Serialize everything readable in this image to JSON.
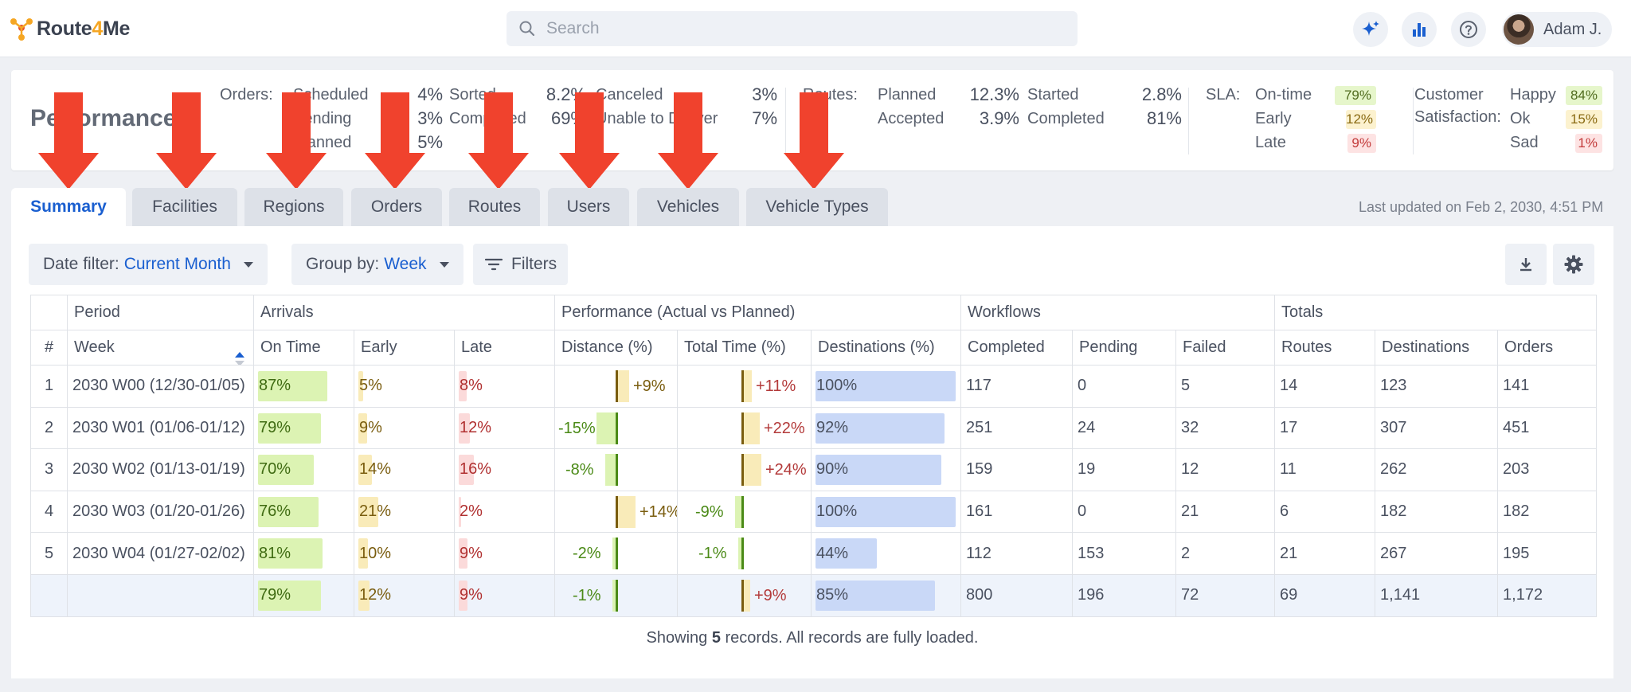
{
  "app": {
    "logo_route": "Route",
    "logo_four": "4",
    "logo_me": "Me"
  },
  "search": {
    "placeholder": "Search"
  },
  "user": {
    "name": "Adam J."
  },
  "summary": {
    "title": "Performance",
    "orders_label": "Orders:",
    "scheduled_label": "Scheduled",
    "scheduled_val": "4%",
    "pending_label": "Pending",
    "pending_val": "3%",
    "planned_label": "Planned",
    "planned_val": "5%",
    "sorted_label": "Sorted",
    "sorted_val": "8.2%",
    "completed_label": "Completed",
    "completed_val": "69%",
    "canceled_label": "Canceled",
    "canceled_val": "3%",
    "unable_label": "Unable to Deliver",
    "unable_val": "7%",
    "routes_label": "Routes:",
    "r_planned_label": "Planned",
    "r_planned_val": "12.3%",
    "r_accepted_label": "Accepted",
    "r_accepted_val": "3.9%",
    "r_started_label": "Started",
    "r_started_val": "2.8%",
    "r_completed_label": "Completed",
    "r_completed_val": "81%",
    "sla_label": "SLA:",
    "ontime_label": "On-time",
    "ontime_val": "79%",
    "early_label": "Early",
    "early_val": "12%",
    "late_label": "Late",
    "late_val": "9%",
    "cust_label_1": "Customer",
    "cust_label_2": "Satisfaction:",
    "happy_label": "Happy",
    "happy_val": "84%",
    "ok_label": "Ok",
    "ok_val": "15%",
    "sad_label": "Sad",
    "sad_val": "1%"
  },
  "tabs": [
    {
      "label": "Summary"
    },
    {
      "label": "Facilities"
    },
    {
      "label": "Regions"
    },
    {
      "label": "Orders"
    },
    {
      "label": "Routes"
    },
    {
      "label": "Users"
    },
    {
      "label": "Vehicles"
    },
    {
      "label": "Vehicle Types"
    }
  ],
  "last_updated": "Last updated on Feb 2, 2030, 4:51 PM",
  "toolbar": {
    "date_filter_label": "Date filter:",
    "date_filter_value": "Current Month",
    "group_by_label": "Group by:",
    "group_by_value": "Week",
    "filters_label": "Filters"
  },
  "table": {
    "groups": {
      "period": "Period",
      "arrivals": "Arrivals",
      "performance": "Performance (Actual vs Planned)",
      "workflows": "Workflows",
      "totals": "Totals"
    },
    "columns": {
      "num": "#",
      "week": "Week",
      "on_time": "On Time",
      "early": "Early",
      "late": "Late",
      "distance": "Distance (%)",
      "total_time": "Total Time (%)",
      "destinations_pct": "Destinations (%)",
      "completed": "Completed",
      "pending": "Pending",
      "failed": "Failed",
      "routes": "Routes",
      "destinations": "Destinations",
      "orders": "Orders"
    },
    "rows": [
      {
        "num": "1",
        "week": "2030 W00 (12/30-01/05)",
        "on_time": "87%",
        "on_time_pct": 87,
        "early": "5%",
        "early_pct": 5,
        "late": "8%",
        "late_pct": 8,
        "distance": "+9%",
        "distance_dev": 9,
        "total_time": "+11%",
        "total_time_dev": 11,
        "dest_pct_label": "100%",
        "dest_pct": 100,
        "completed": "117",
        "pending": "0",
        "failed": "5",
        "routes": "14",
        "destinations": "123",
        "orders": "141"
      },
      {
        "num": "2",
        "week": "2030 W01 (01/06-01/12)",
        "on_time": "79%",
        "on_time_pct": 79,
        "early": "9%",
        "early_pct": 9,
        "late": "12%",
        "late_pct": 12,
        "distance": "-15%",
        "distance_dev": -15,
        "total_time": "+22%",
        "total_time_dev": 22,
        "dest_pct_label": "92%",
        "dest_pct": 92,
        "completed": "251",
        "pending": "24",
        "failed": "32",
        "routes": "17",
        "destinations": "307",
        "orders": "451"
      },
      {
        "num": "3",
        "week": "2030 W02 (01/13-01/19)",
        "on_time": "70%",
        "on_time_pct": 70,
        "early": "14%",
        "early_pct": 14,
        "late": "16%",
        "late_pct": 16,
        "distance": "-8%",
        "distance_dev": -8,
        "total_time": "+24%",
        "total_time_dev": 24,
        "dest_pct_label": "90%",
        "dest_pct": 90,
        "completed": "159",
        "pending": "19",
        "failed": "12",
        "routes": "11",
        "destinations": "262",
        "orders": "203"
      },
      {
        "num": "4",
        "week": "2030 W03 (01/20-01/26)",
        "on_time": "76%",
        "on_time_pct": 76,
        "early": "21%",
        "early_pct": 21,
        "late": "2%",
        "late_pct": 2,
        "distance": "+14%",
        "distance_dev": 14,
        "total_time": "-9%",
        "total_time_dev": -9,
        "dest_pct_label": "100%",
        "dest_pct": 100,
        "completed": "161",
        "pending": "0",
        "failed": "21",
        "routes": "6",
        "destinations": "182",
        "orders": "182"
      },
      {
        "num": "5",
        "week": "2030 W04 (01/27-02/02)",
        "on_time": "81%",
        "on_time_pct": 81,
        "early": "10%",
        "early_pct": 10,
        "late": "9%",
        "late_pct": 9,
        "distance": "-2%",
        "distance_dev": -2,
        "total_time": "-1%",
        "total_time_dev": -1,
        "dest_pct_label": "44%",
        "dest_pct": 44,
        "completed": "112",
        "pending": "153",
        "failed": "2",
        "routes": "21",
        "destinations": "267",
        "orders": "195"
      }
    ],
    "total": {
      "num": "",
      "week": "",
      "on_time": "79%",
      "on_time_pct": 79,
      "early": "12%",
      "early_pct": 12,
      "late": "9%",
      "late_pct": 9,
      "distance": "-1%",
      "distance_dev": -1,
      "total_time": "+9%",
      "total_time_dev": 9,
      "dest_pct_label": "85%",
      "dest_pct": 85,
      "completed": "800",
      "pending": "196",
      "failed": "72",
      "routes": "69",
      "destinations": "1,141",
      "orders": "1,172"
    }
  },
  "footer": {
    "prefix": "Showing",
    "count": "5",
    "suffix": "records. All records are fully loaded."
  },
  "colors": {
    "accent": "#1a5fd0",
    "arrow": "#f0422d",
    "on_time_bar": "#dcf3b3",
    "early_bar": "#f9ebb9",
    "late_bar": "#fbdada",
    "dest_bar": "#c9d8f7",
    "dev_positive": "#f9ebb9",
    "dev_negative": "#dcf3b3"
  },
  "icons": [
    "logo-icon",
    "search-icon",
    "sparkle-icon",
    "bar-chart-icon",
    "help-icon",
    "filter-icon",
    "download-icon",
    "gear-icon",
    "sort-icon",
    "red-arrow"
  ]
}
